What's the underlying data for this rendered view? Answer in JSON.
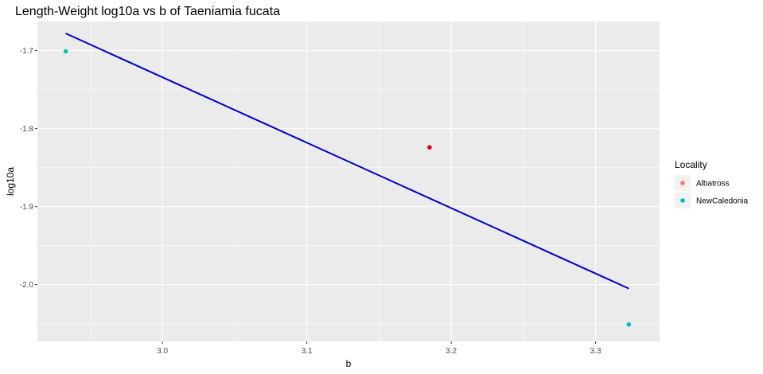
{
  "chart_data": {
    "type": "scatter",
    "title": "Length-Weight log10a vs b of Taeniamia fucata",
    "xlabel": "b",
    "ylabel": "log10a",
    "xlim": [
      2.9134,
      3.3443
    ],
    "ylim": [
      -2.0727,
      -1.6627
    ],
    "x_ticks": [
      3.0,
      3.1,
      3.2,
      3.3
    ],
    "x_tick_labels": [
      "3.0",
      "3.1",
      "3.2",
      "3.3"
    ],
    "y_ticks": [
      -1.7,
      -1.8,
      -1.9,
      -2.0
    ],
    "y_tick_labels": [
      "-1.7",
      "-1.8",
      "-1.9",
      "-2.0"
    ],
    "grid": true,
    "legend_position": "right",
    "legend": {
      "title": "Locality",
      "entries": [
        {
          "name": "Albatross",
          "color": "#F8766D"
        },
        {
          "name": "NewCaledonia",
          "color": "#00BFC4"
        }
      ]
    },
    "series": [
      {
        "name": "Albatross",
        "color": "#E8000B",
        "points": [
          {
            "x": 3.185,
            "y": -1.824
          }
        ]
      },
      {
        "name": "NewCaledonia",
        "color": "#00BFC4",
        "points": [
          {
            "x": 2.933,
            "y": -1.701
          },
          {
            "x": 3.323,
            "y": -2.051
          }
        ]
      }
    ],
    "fit_line": {
      "color": "#0000CC",
      "points": [
        {
          "x": 2.933,
          "y": -1.678
        },
        {
          "x": 3.323,
          "y": -2.005
        }
      ]
    }
  }
}
